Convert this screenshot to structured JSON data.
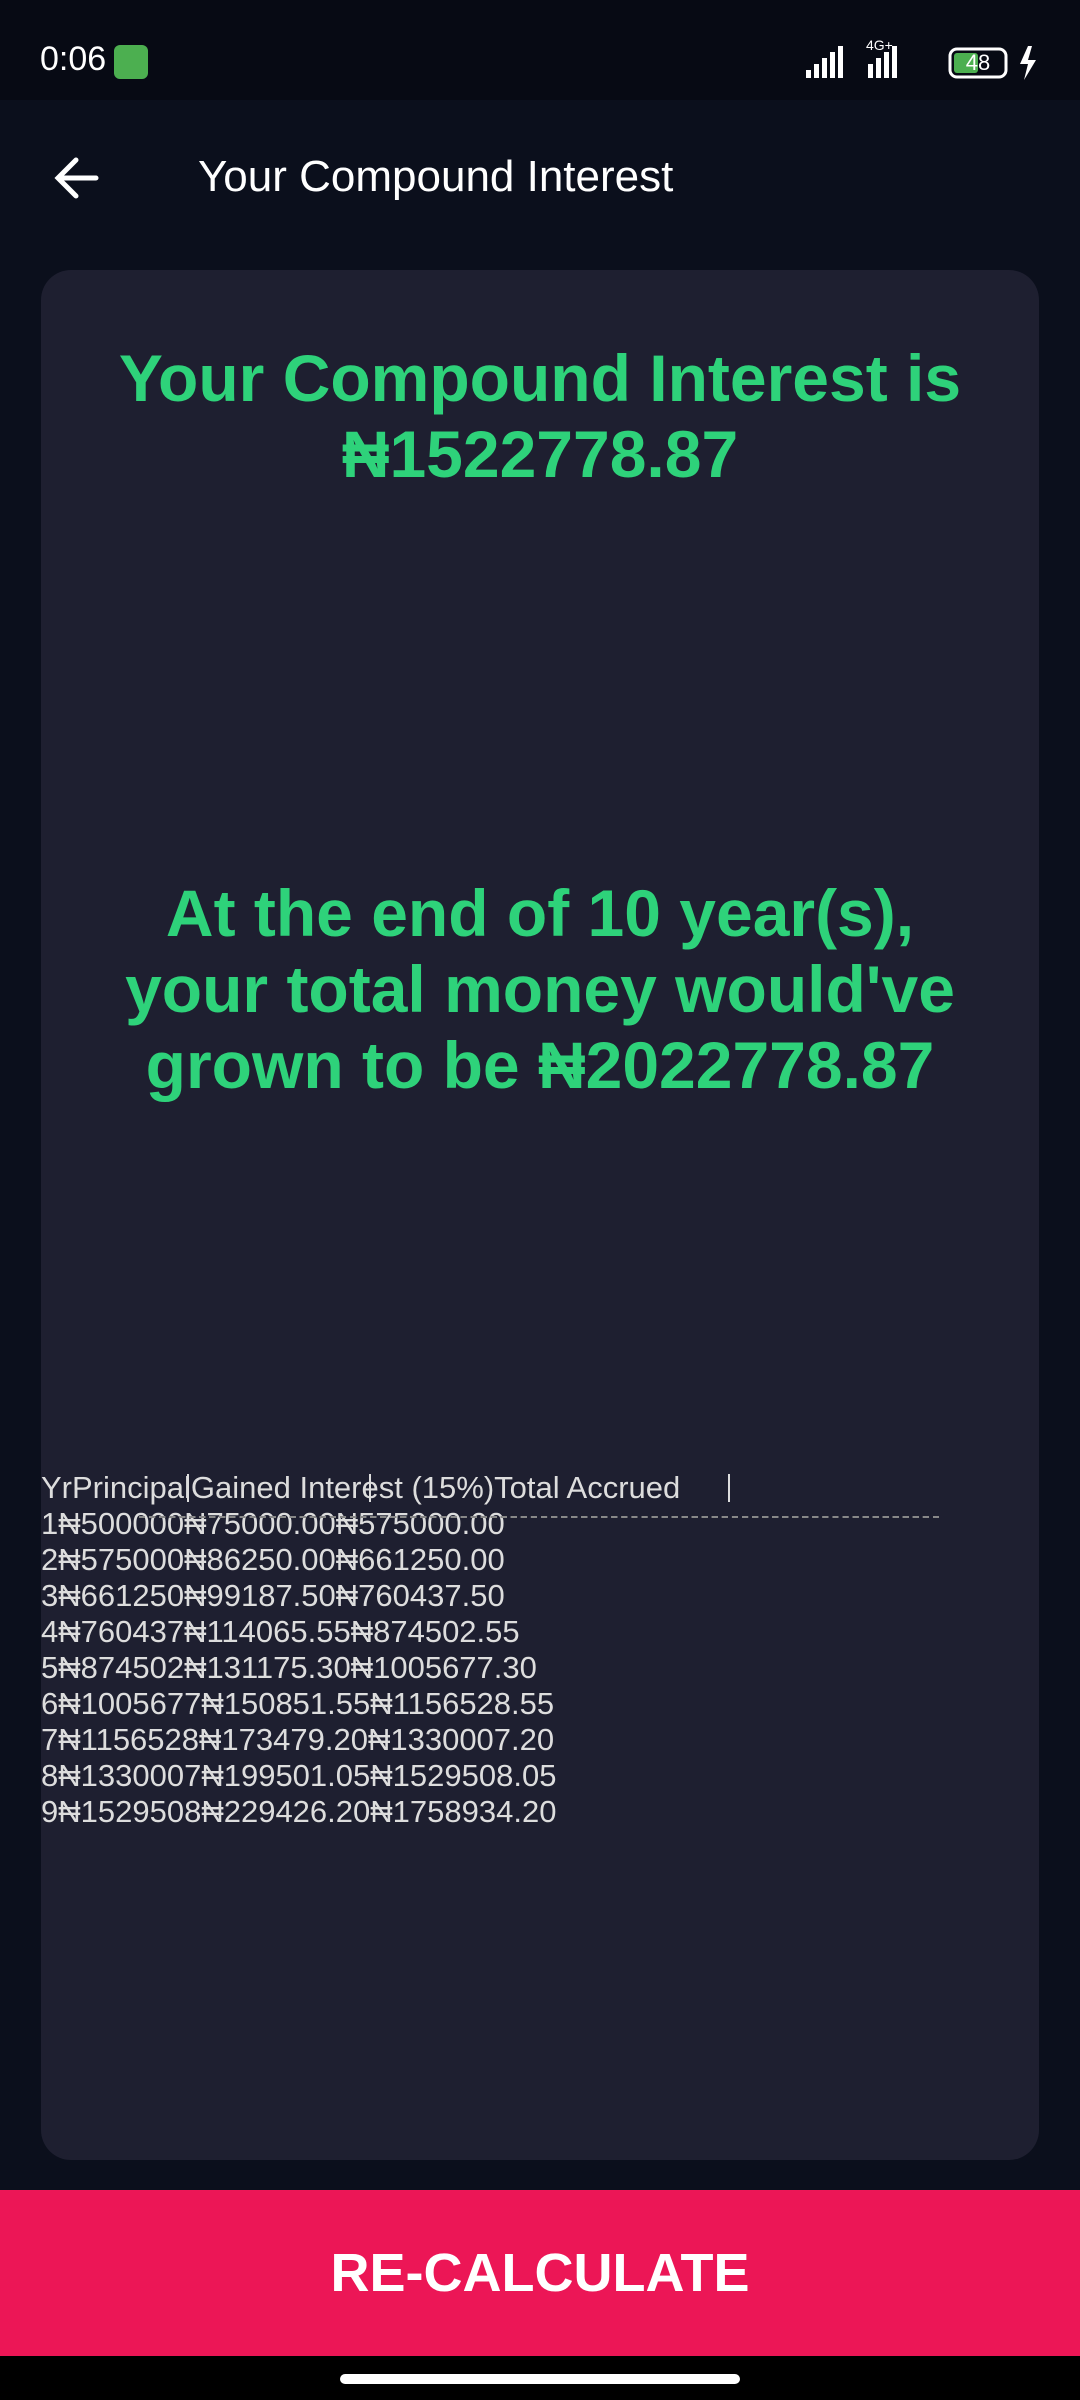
{
  "status_bar": {
    "time": "0:06",
    "network": "4G+",
    "battery": "48"
  },
  "header": {
    "title": "Your Compound Interest"
  },
  "result": {
    "interest": "Your Compound Interest is ₦1522778.87",
    "total": "At the end of 10 year(s), your total money would've grown to be ₦2022778.87"
  },
  "table": {
    "header": [
      "Yr",
      "Principal",
      "Gained Interest (15%)",
      "Total Accrued"
    ],
    "rows": [
      [
        "1",
        "₦500000",
        "₦75000.00",
        "₦575000.00"
      ],
      [
        "2",
        "₦575000",
        "₦86250.00",
        "₦661250.00"
      ],
      [
        "3",
        "₦661250",
        "₦99187.50",
        "₦760437.50"
      ],
      [
        "4",
        "₦760437",
        "₦114065.55",
        "₦874502.55"
      ],
      [
        "5",
        "₦874502",
        "₦131175.30",
        "₦1005677.30"
      ],
      [
        "6",
        "₦1005677",
        "₦150851.55",
        "₦1156528.55"
      ],
      [
        "7",
        "₦1156528",
        "₦173479.20",
        "₦1330007.20"
      ],
      [
        "8",
        "₦1330007",
        "₦199501.05",
        "₦1529508.05"
      ],
      [
        "9",
        "₦1529508",
        "₦229426.20",
        "₦1758934.20"
      ]
    ]
  },
  "button": {
    "label": "RE-CALCULATE"
  }
}
